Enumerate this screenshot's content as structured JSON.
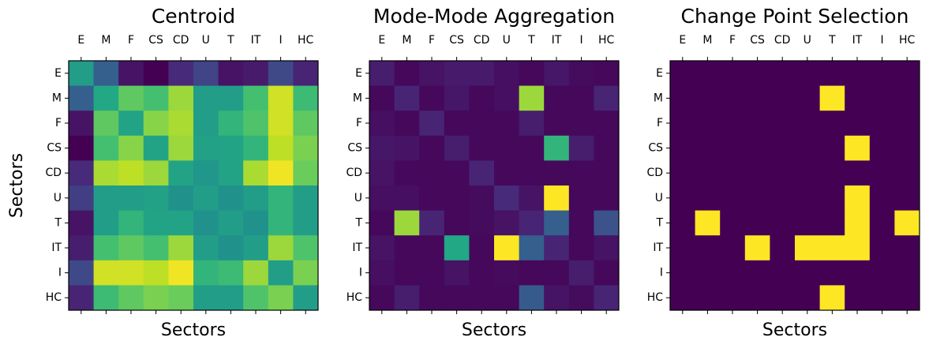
{
  "chart_data": [
    {
      "type": "heatmap",
      "title": "Centroid",
      "xlabel": "Sectors",
      "ylabel": "Sectors",
      "colormap": "viridis",
      "vlim": [
        0,
        1
      ],
      "x": [
        "E",
        "M",
        "F",
        "CS",
        "CD",
        "U",
        "T",
        "IT",
        "I",
        "HC"
      ],
      "y": [
        "E",
        "M",
        "F",
        "CS",
        "CD",
        "U",
        "T",
        "IT",
        "I",
        "HC"
      ],
      "values": [
        [
          0.55,
          0.3,
          0.05,
          0.0,
          0.12,
          0.2,
          0.05,
          0.07,
          0.22,
          0.1
        ],
        [
          0.3,
          0.6,
          0.75,
          0.7,
          0.85,
          0.55,
          0.55,
          0.7,
          0.93,
          0.68
        ],
        [
          0.05,
          0.75,
          0.58,
          0.82,
          0.87,
          0.55,
          0.65,
          0.72,
          0.93,
          0.75
        ],
        [
          0.0,
          0.7,
          0.82,
          0.58,
          0.85,
          0.57,
          0.58,
          0.65,
          0.9,
          0.8
        ],
        [
          0.12,
          0.87,
          0.9,
          0.85,
          0.58,
          0.52,
          0.58,
          0.87,
          0.98,
          0.77
        ],
        [
          0.18,
          0.55,
          0.55,
          0.57,
          0.5,
          0.55,
          0.5,
          0.55,
          0.65,
          0.55
        ],
        [
          0.05,
          0.55,
          0.65,
          0.58,
          0.58,
          0.5,
          0.55,
          0.5,
          0.65,
          0.55
        ],
        [
          0.08,
          0.7,
          0.75,
          0.7,
          0.85,
          0.55,
          0.5,
          0.55,
          0.85,
          0.72
        ],
        [
          0.22,
          0.93,
          0.93,
          0.9,
          0.98,
          0.65,
          0.68,
          0.85,
          0.55,
          0.8
        ],
        [
          0.1,
          0.68,
          0.75,
          0.8,
          0.77,
          0.55,
          0.55,
          0.72,
          0.8,
          0.55
        ]
      ]
    },
    {
      "type": "heatmap",
      "title": "Mode-Mode Aggregation",
      "xlabel": "Sectors",
      "colormap": "viridis",
      "vlim": [
        0,
        1
      ],
      "x": [
        "E",
        "M",
        "F",
        "CS",
        "CD",
        "U",
        "T",
        "IT",
        "I",
        "HC"
      ],
      "y": [
        "E",
        "M",
        "F",
        "CS",
        "CD",
        "U",
        "T",
        "IT",
        "I",
        "HC"
      ],
      "values": [
        [
          0.08,
          0.02,
          0.05,
          0.07,
          0.07,
          0.04,
          0.02,
          0.06,
          0.03,
          0.02
        ],
        [
          0.02,
          0.1,
          0.02,
          0.06,
          0.02,
          0.04,
          0.85,
          0.02,
          0.02,
          0.1
        ],
        [
          0.04,
          0.02,
          0.1,
          0.02,
          0.02,
          0.02,
          0.08,
          0.02,
          0.02,
          0.02
        ],
        [
          0.06,
          0.05,
          0.02,
          0.08,
          0.02,
          0.02,
          0.02,
          0.65,
          0.08,
          0.02
        ],
        [
          0.05,
          0.02,
          0.02,
          0.02,
          0.1,
          0.02,
          0.02,
          0.02,
          0.02,
          0.02
        ],
        [
          0.04,
          0.04,
          0.02,
          0.02,
          0.03,
          0.12,
          0.05,
          1.0,
          0.02,
          0.02
        ],
        [
          0.02,
          0.85,
          0.1,
          0.02,
          0.03,
          0.05,
          0.1,
          0.3,
          0.02,
          0.25
        ],
        [
          0.05,
          0.02,
          0.02,
          0.6,
          0.02,
          1.0,
          0.3,
          0.1,
          0.02,
          0.05
        ],
        [
          0.04,
          0.02,
          0.02,
          0.05,
          0.02,
          0.03,
          0.02,
          0.02,
          0.08,
          0.02
        ],
        [
          0.02,
          0.08,
          0.02,
          0.02,
          0.02,
          0.02,
          0.28,
          0.05,
          0.03,
          0.1
        ]
      ]
    },
    {
      "type": "heatmap",
      "title": "Change Point Selection",
      "xlabel": "Sectors",
      "colormap": "viridis",
      "vlim": [
        0,
        1
      ],
      "x": [
        "E",
        "M",
        "F",
        "CS",
        "CD",
        "U",
        "T",
        "IT",
        "I",
        "HC"
      ],
      "y": [
        "E",
        "M",
        "F",
        "CS",
        "CD",
        "U",
        "T",
        "IT",
        "I",
        "HC"
      ],
      "values": [
        [
          0,
          0,
          0,
          0,
          0,
          0,
          0,
          0,
          0,
          0
        ],
        [
          0,
          0,
          0,
          0,
          0,
          0,
          1,
          0,
          0,
          0
        ],
        [
          0,
          0,
          0,
          0,
          0,
          0,
          0,
          0,
          0,
          0
        ],
        [
          0,
          0,
          0,
          0,
          0,
          0,
          0,
          1,
          0,
          0
        ],
        [
          0,
          0,
          0,
          0,
          0,
          0,
          0,
          0,
          0,
          0
        ],
        [
          0,
          0,
          0,
          0,
          0,
          0,
          0,
          1,
          0,
          0
        ],
        [
          0,
          1,
          0,
          0,
          0,
          0,
          0,
          1,
          0,
          1
        ],
        [
          0,
          0,
          0,
          1,
          0,
          1,
          1,
          1,
          0,
          0
        ],
        [
          0,
          0,
          0,
          0,
          0,
          0,
          0,
          0,
          0,
          0
        ],
        [
          0,
          0,
          0,
          0,
          0,
          0,
          1,
          0,
          0,
          0
        ]
      ]
    }
  ]
}
